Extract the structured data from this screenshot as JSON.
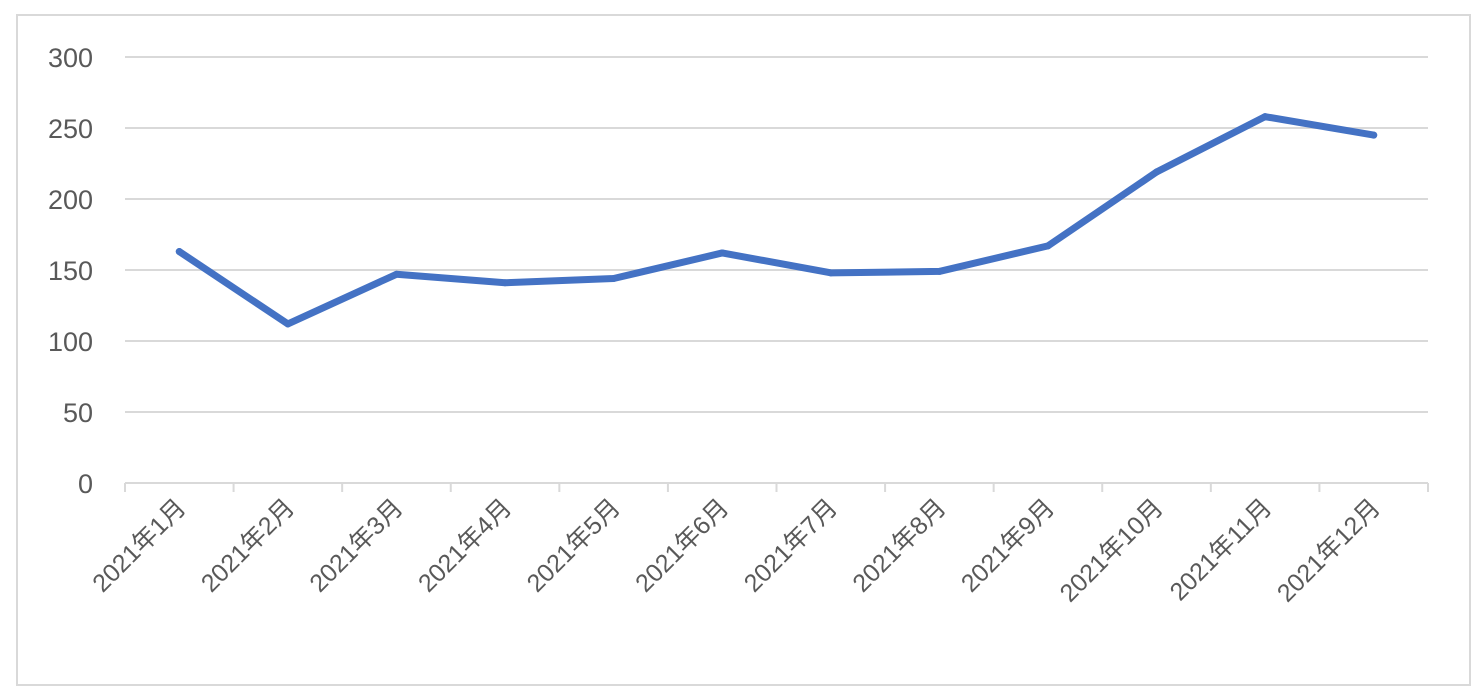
{
  "chart_data": {
    "type": "line",
    "title": "",
    "xlabel": "",
    "ylabel": "",
    "categories": [
      "2021年1月",
      "2021年2月",
      "2021年3月",
      "2021年4月",
      "2021年5月",
      "2021年6月",
      "2021年7月",
      "2021年8月",
      "2021年9月",
      "2021年10月",
      "2021年11月",
      "2021年12月"
    ],
    "series": [
      {
        "values": [
          163,
          112,
          147,
          141,
          144,
          162,
          148,
          149,
          167,
          219,
          258,
          245
        ]
      }
    ],
    "ylim": [
      0,
      300
    ],
    "yticks": [
      "0",
      "50",
      "100",
      "150",
      "200",
      "250",
      "300"
    ],
    "grid": true,
    "legend": "none",
    "colors": {
      "line": "#4472c4",
      "grid": "#d9d9d9",
      "text": "#595959",
      "frame": "#d9d9d9"
    }
  }
}
